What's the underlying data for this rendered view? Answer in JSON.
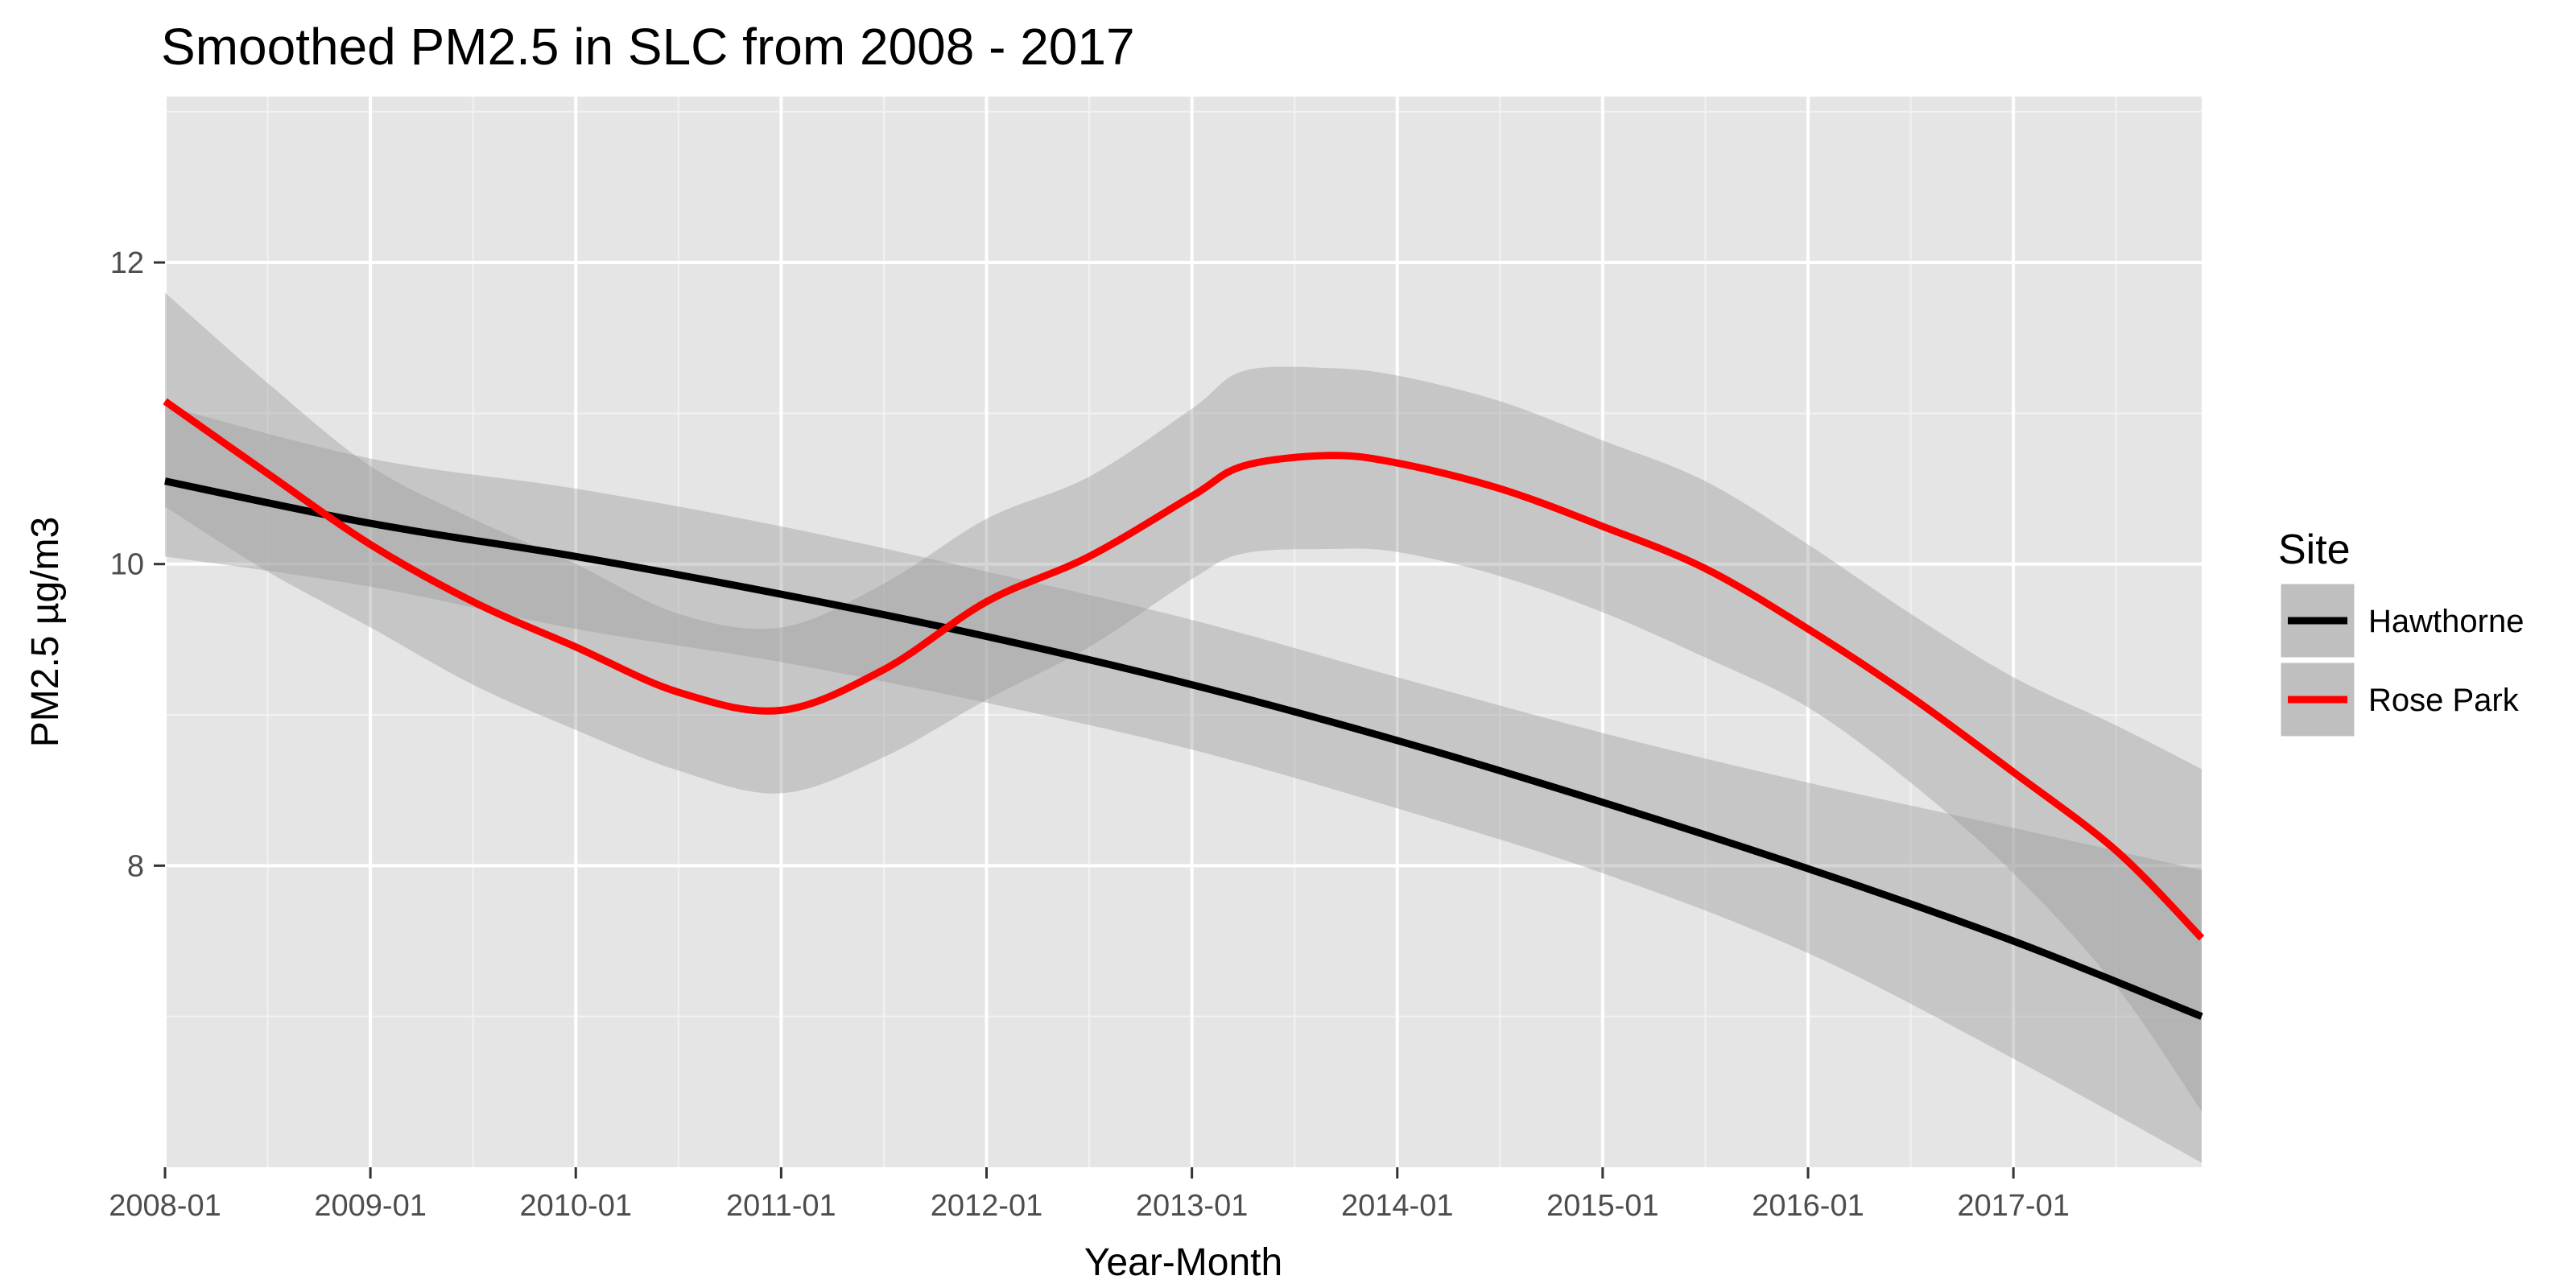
{
  "chart_data": {
    "type": "line",
    "title": "Smoothed PM2.5 in SLC from 2008 - 2017",
    "xlabel": "Year-Month",
    "ylabel": "PM2.5 µg/m3",
    "x_axis_type": "date",
    "xlim": [
      "2008-01",
      "2017-12"
    ],
    "ylim": [
      6.0,
      13.1
    ],
    "x_ticks": [
      "2008-01",
      "2009-01",
      "2010-01",
      "2011-01",
      "2012-01",
      "2013-01",
      "2014-01",
      "2015-01",
      "2016-01",
      "2017-01"
    ],
    "y_ticks": [
      8,
      10,
      12
    ],
    "grid": true,
    "panel_background": "#e5e5e5",
    "legend": {
      "title": "Site",
      "position": "right"
    },
    "series": [
      {
        "name": "Hawthorne",
        "color": "#000000",
        "x": [
          "2008-01",
          "2009-01",
          "2010-01",
          "2011-01",
          "2012-01",
          "2013-01",
          "2014-01",
          "2015-01",
          "2016-01",
          "2017-01",
          "2017-12"
        ],
        "y": [
          10.55,
          10.27,
          10.05,
          9.8,
          9.52,
          9.2,
          8.83,
          8.42,
          7.98,
          7.5,
          7.0
        ],
        "ci_lower": [
          10.05,
          9.85,
          9.57,
          9.35,
          9.08,
          8.77,
          8.38,
          7.95,
          7.42,
          6.72,
          6.03
        ],
        "ci_upper": [
          11.05,
          10.7,
          10.5,
          10.25,
          9.95,
          9.63,
          9.25,
          8.88,
          8.55,
          8.25,
          7.97
        ]
      },
      {
        "name": "Rose Park",
        "color": "#ff0000",
        "x": [
          "2008-01",
          "2008-07",
          "2009-01",
          "2009-07",
          "2010-01",
          "2010-07",
          "2011-01",
          "2011-07",
          "2012-01",
          "2012-07",
          "2013-01",
          "2013-04",
          "2013-09",
          "2014-01",
          "2014-07",
          "2015-01",
          "2015-07",
          "2016-01",
          "2016-07",
          "2017-01",
          "2017-07",
          "2017-12"
        ],
        "y": [
          11.08,
          10.6,
          10.13,
          9.75,
          9.45,
          9.15,
          9.03,
          9.3,
          9.75,
          10.05,
          10.45,
          10.65,
          10.72,
          10.67,
          10.5,
          10.25,
          9.97,
          9.57,
          9.12,
          8.62,
          8.1,
          7.52
        ],
        "ci_lower": [
          10.38,
          9.95,
          9.58,
          9.2,
          8.9,
          8.63,
          8.48,
          8.72,
          9.1,
          9.45,
          9.9,
          10.07,
          10.1,
          10.08,
          9.92,
          9.68,
          9.38,
          9.05,
          8.55,
          7.95,
          7.2,
          6.37
        ],
        "ci_upper": [
          11.8,
          11.2,
          10.65,
          10.3,
          10.0,
          9.67,
          9.58,
          9.87,
          10.3,
          10.58,
          11.03,
          11.28,
          11.3,
          11.25,
          11.08,
          10.82,
          10.55,
          10.13,
          9.67,
          9.25,
          8.93,
          8.64
        ]
      }
    ]
  }
}
